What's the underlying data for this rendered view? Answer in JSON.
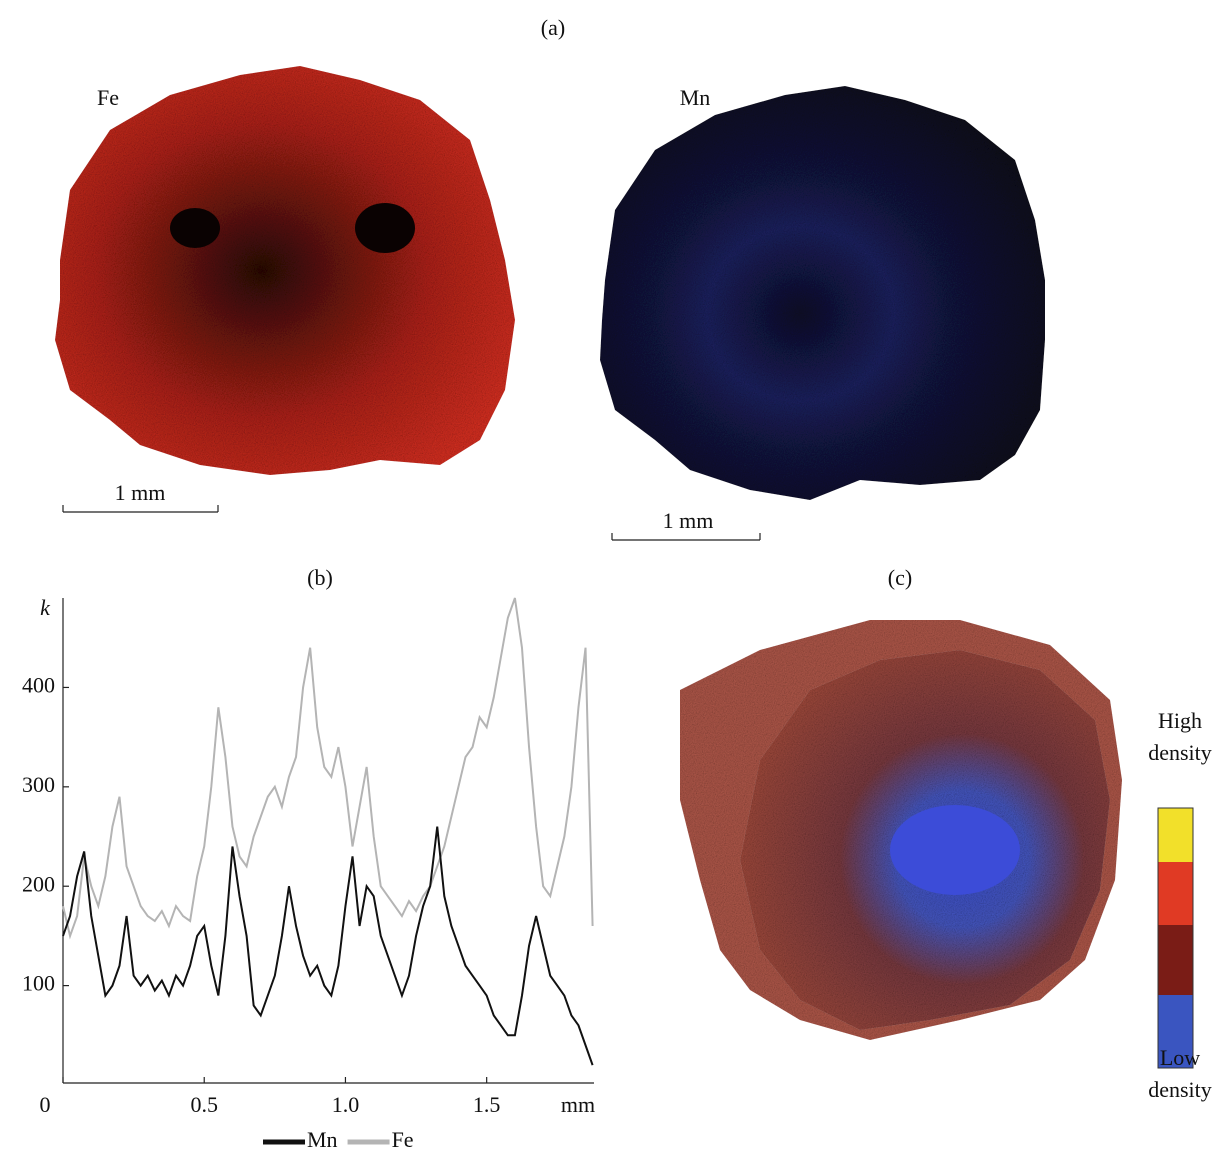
{
  "panels": {
    "a_label": "(a)",
    "fe_label": "Fe",
    "mn_label": "Mn",
    "scale_label_1": "1 mm",
    "scale_label_2": "1 mm",
    "b_label": "(b)",
    "c_label": "(c)",
    "high_label": [
      "High",
      "density"
    ],
    "low_label": [
      "Low",
      "density"
    ]
  },
  "chart_data": {
    "type": "line",
    "x_label": "mm",
    "y_label": "k",
    "x": [
      0,
      0.025,
      0.05,
      0.075,
      0.1,
      0.125,
      0.15,
      0.175,
      0.2,
      0.225,
      0.25,
      0.275,
      0.3,
      0.325,
      0.35,
      0.375,
      0.4,
      0.425,
      0.45,
      0.475,
      0.5,
      0.525,
      0.55,
      0.575,
      0.6,
      0.625,
      0.65,
      0.675,
      0.7,
      0.725,
      0.75,
      0.775,
      0.8,
      0.825,
      0.85,
      0.875,
      0.9,
      0.925,
      0.95,
      0.975,
      1.0,
      1.025,
      1.05,
      1.075,
      1.1,
      1.125,
      1.15,
      1.175,
      1.2,
      1.225,
      1.25,
      1.275,
      1.3,
      1.325,
      1.35,
      1.375,
      1.4,
      1.425,
      1.45,
      1.475,
      1.5,
      1.525,
      1.55,
      1.575,
      1.6,
      1.625,
      1.65,
      1.675,
      1.7,
      1.725,
      1.75,
      1.775,
      1.8,
      1.825,
      1.85,
      1.875
    ],
    "series": [
      {
        "name": "Mn",
        "color": "#111111",
        "values": [
          150,
          170,
          210,
          235,
          170,
          130,
          90,
          100,
          120,
          170,
          110,
          100,
          110,
          95,
          105,
          90,
          110,
          100,
          120,
          150,
          160,
          120,
          90,
          150,
          240,
          190,
          150,
          80,
          70,
          90,
          110,
          150,
          200,
          160,
          130,
          110,
          120,
          100,
          90,
          120,
          180,
          230,
          160,
          200,
          190,
          150,
          130,
          110,
          90,
          110,
          150,
          180,
          200,
          260,
          190,
          160,
          140,
          120,
          110,
          100,
          90,
          70,
          60,
          50,
          50,
          90,
          140,
          170,
          140,
          110,
          100,
          90,
          70,
          60,
          40,
          20
        ]
      },
      {
        "name": "Fe",
        "color": "#b4b4b4",
        "values": [
          180,
          150,
          170,
          230,
          200,
          180,
          210,
          260,
          290,
          220,
          200,
          180,
          170,
          165,
          175,
          160,
          180,
          170,
          165,
          210,
          240,
          300,
          380,
          330,
          260,
          230,
          220,
          250,
          270,
          290,
          300,
          280,
          310,
          330,
          400,
          440,
          360,
          320,
          310,
          340,
          300,
          240,
          280,
          320,
          250,
          200,
          190,
          180,
          170,
          185,
          175,
          190,
          200,
          220,
          240,
          270,
          300,
          330,
          340,
          370,
          360,
          390,
          430,
          470,
          490,
          440,
          340,
          260,
          200,
          190,
          220,
          250,
          300,
          380,
          440,
          160
        ]
      }
    ],
    "xlim": [
      0,
      1.88
    ],
    "ylim": [
      2,
      490
    ],
    "xticks": [
      0,
      0.5,
      {
        "value": 1,
        "label": "1.0"
      },
      1.5
    ],
    "yticks": [
      100,
      200,
      300,
      400
    ],
    "legend": "bottom"
  }
}
